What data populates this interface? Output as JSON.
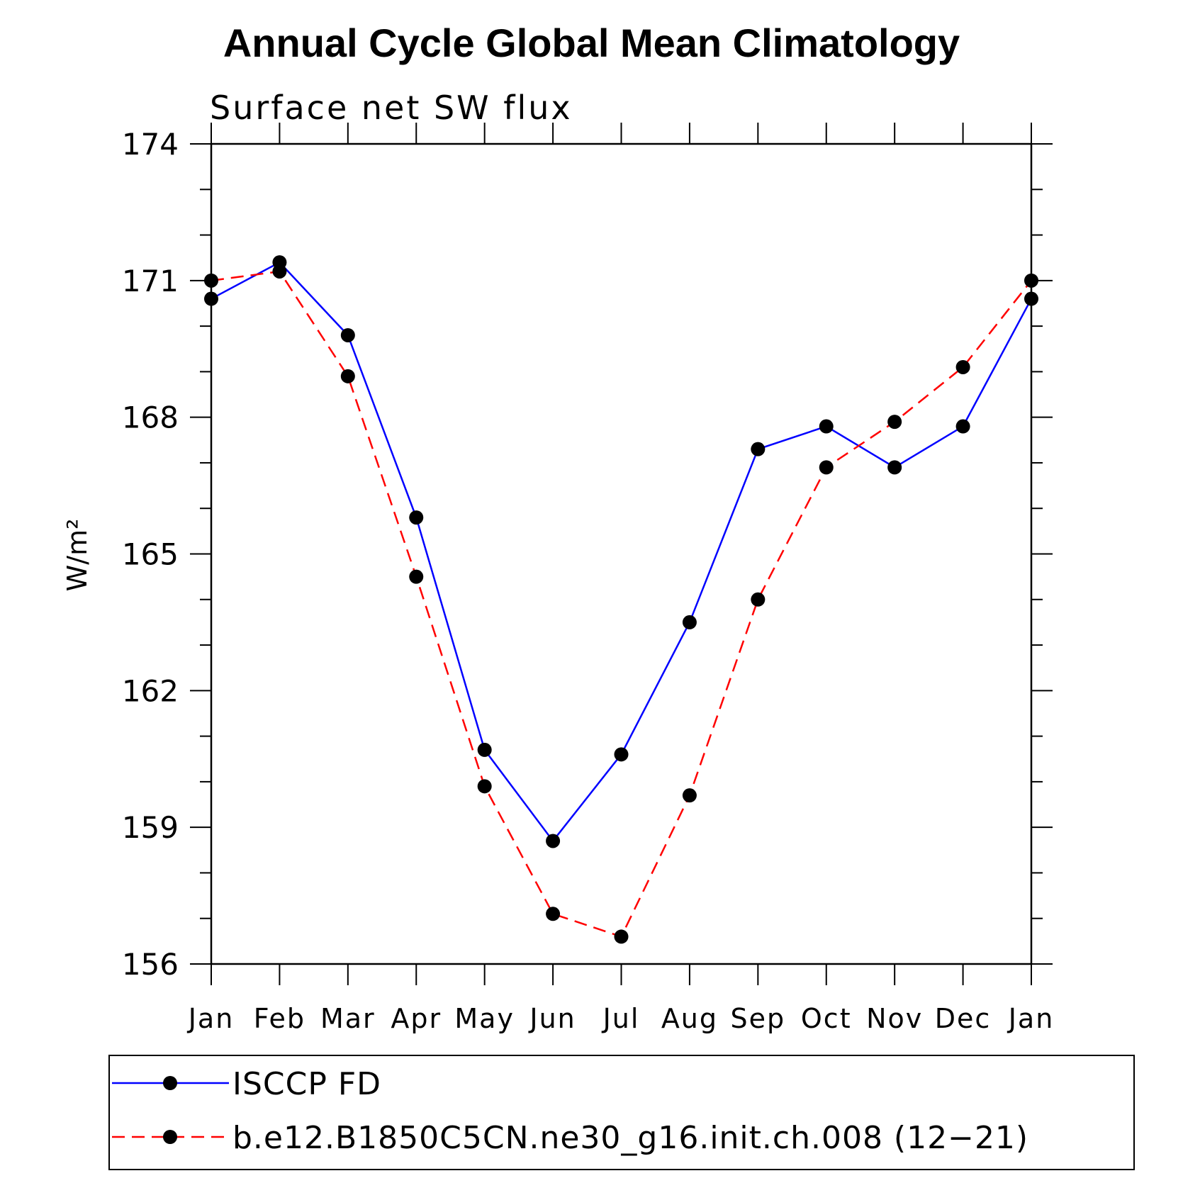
{
  "chart_data": {
    "type": "line",
    "title": "Annual Cycle Global Mean Climatology",
    "subtitle": "Surface net SW flux",
    "ylabel": "W/m²",
    "xlabel": "",
    "ylim": [
      156,
      174
    ],
    "yticks": [
      156,
      159,
      162,
      165,
      168,
      171,
      174
    ],
    "categories": [
      "Jan",
      "Feb",
      "Mar",
      "Apr",
      "May",
      "Jun",
      "Jul",
      "Aug",
      "Sep",
      "Oct",
      "Nov",
      "Dec",
      "Jan"
    ],
    "series": [
      {
        "name": "ISCCP FD",
        "color": "#0000ff",
        "dash": "solid",
        "values": [
          170.6,
          171.4,
          169.8,
          165.8,
          160.7,
          158.7,
          160.6,
          163.5,
          167.3,
          167.8,
          166.9,
          167.8,
          170.6
        ]
      },
      {
        "name": "b.e12.B1850C5CN.ne30_g16.init.ch.008 (12−21)",
        "color": "#ff0000",
        "dash": "dashed",
        "values": [
          171.0,
          171.2,
          168.9,
          164.5,
          159.9,
          157.1,
          156.6,
          159.7,
          164.0,
          166.9,
          167.9,
          169.1,
          171.0
        ]
      }
    ],
    "legend": "bottom",
    "grid": false
  }
}
